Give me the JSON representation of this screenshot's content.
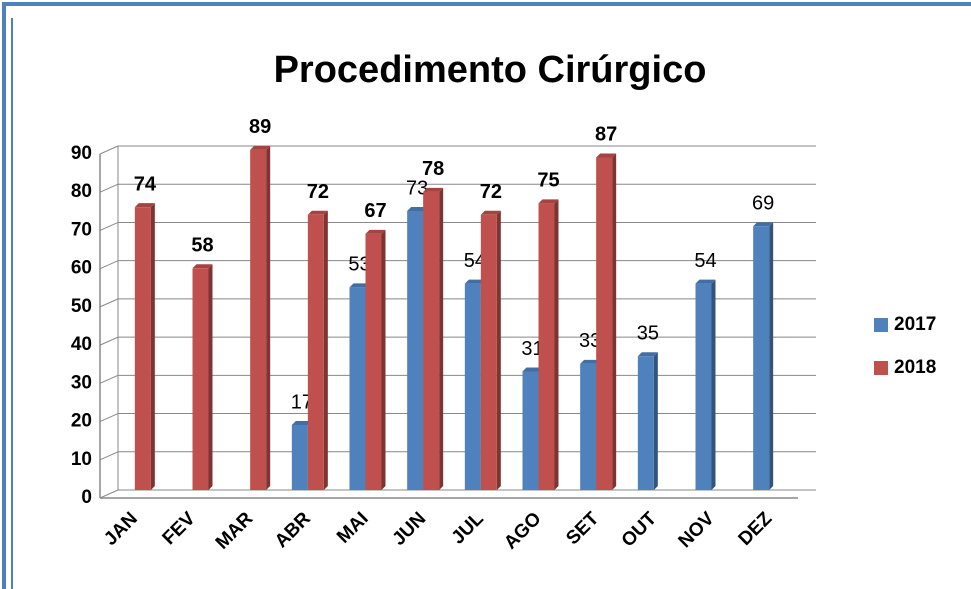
{
  "chart_data": {
    "type": "bar",
    "title": "Procedimento Cirúrgico",
    "categories": [
      "JAN",
      "FEV",
      "MAR",
      "ABR",
      "MAI",
      "JUN",
      "JUL",
      "AGO",
      "SET",
      "OUT",
      "NOV",
      "DEZ"
    ],
    "series": [
      {
        "name": "2017",
        "color": "#4f81bd",
        "values": [
          null,
          null,
          null,
          17,
          53,
          73,
          54,
          31,
          33,
          35,
          54,
          69
        ]
      },
      {
        "name": "2018",
        "color": "#c0504d",
        "values": [
          74,
          58,
          89,
          72,
          67,
          78,
          72,
          75,
          87,
          null,
          null,
          null
        ]
      }
    ],
    "ylim": [
      0,
      90
    ],
    "yticks": [
      0,
      10,
      20,
      30,
      40,
      50,
      60,
      70,
      80,
      90
    ],
    "grid": true,
    "legend": "right"
  }
}
